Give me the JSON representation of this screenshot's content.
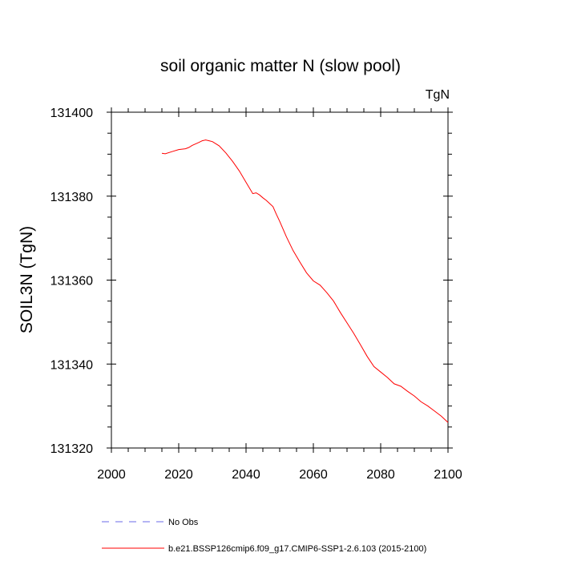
{
  "chart_data": {
    "type": "line",
    "title": "soil organic matter N (slow pool)",
    "units_label": "TgN",
    "xlabel": "",
    "ylabel": "SOIL3N  (TgN)",
    "xlim": [
      2000,
      2100
    ],
    "ylim": [
      131320,
      131400
    ],
    "x_ticks": [
      2000,
      2020,
      2040,
      2060,
      2080,
      2100
    ],
    "y_ticks": [
      131320,
      131340,
      131360,
      131380,
      131400
    ],
    "grid": false,
    "legend_position": "bottom",
    "series": [
      {
        "name": "b.e21.BSSP126cmip6.f09_g17.CMIP6-SSP1-2.6.103 (2015-2100)",
        "color": "#ff0000",
        "style": "solid",
        "x": [
          2015,
          2016,
          2018,
          2020,
          2022,
          2023,
          2024,
          2026,
          2027,
          2028,
          2029,
          2030,
          2032,
          2034,
          2036,
          2038,
          2040,
          2042,
          2043,
          2044,
          2045,
          2046,
          2048,
          2049,
          2050,
          2052,
          2054,
          2056,
          2058,
          2060,
          2062,
          2064,
          2066,
          2068,
          2070,
          2072,
          2074,
          2076,
          2078,
          2080,
          2082,
          2084,
          2086,
          2088,
          2090,
          2092,
          2094,
          2096,
          2098,
          2100
        ],
        "y": [
          131390.2,
          131390.1,
          131390.6,
          131391.1,
          131391.3,
          131391.6,
          131392.1,
          131392.8,
          131393.2,
          131393.4,
          131393.2,
          131393.0,
          131392.0,
          131390.3,
          131388.3,
          131386.0,
          131383.3,
          131380.6,
          131380.8,
          131380.3,
          131379.6,
          131379.0,
          131377.5,
          131375.7,
          131374.0,
          131370.3,
          131367.0,
          131364.3,
          131361.7,
          131359.8,
          131358.8,
          131357.0,
          131355.0,
          131352.3,
          131349.8,
          131347.3,
          131344.6,
          131341.8,
          131339.4,
          131338.1,
          131336.8,
          131335.3,
          131334.7,
          131333.5,
          131332.4,
          131331.0,
          131330.0,
          131328.8,
          131327.6,
          131326.1
        ]
      },
      {
        "name": "No Obs",
        "color": "#6a6ae8",
        "style": "dashed",
        "x": [],
        "y": []
      }
    ]
  }
}
